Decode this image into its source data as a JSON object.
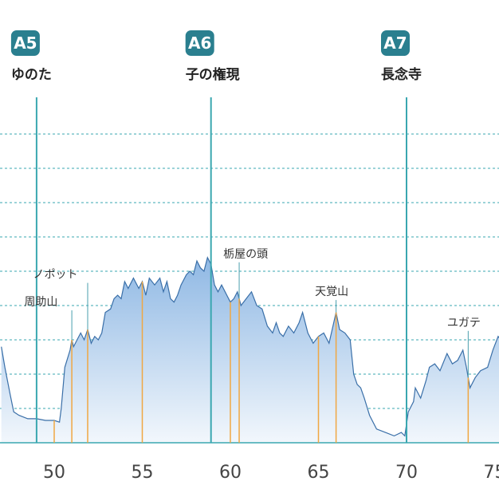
{
  "chart_data": {
    "type": "area",
    "x_ticks": [
      50,
      55,
      60,
      65,
      70,
      75
    ],
    "xlim": [
      47.0,
      75.5
    ],
    "ylim": [
      0,
      10
    ],
    "grid": true,
    "checkpoints": [
      {
        "code": "A5",
        "name": "ゆのた",
        "x": 49.0
      },
      {
        "code": "A6",
        "name": "子の権現",
        "x": 58.9
      },
      {
        "code": "A7",
        "name": "長念寺",
        "x": 70.0
      }
    ],
    "peaks": [
      {
        "name": "周助山",
        "x": 51.0,
        "y": 3.1,
        "label_x": 48.3,
        "label_y": 4.0
      },
      {
        "name": "ノポット",
        "x": 51.9,
        "y": 3.2,
        "label_x": 48.8,
        "label_y": 4.8
      },
      {
        "name": "栃屋の頭",
        "x": 60.5,
        "y": 4.8,
        "label_x": 59.6,
        "label_y": 5.4
      },
      {
        "name": "天覚山",
        "x": 66.0,
        "y": 4.2,
        "label_x": 64.8,
        "label_y": 4.3
      },
      {
        "name": "ユガテ",
        "x": 73.5,
        "y": 2.7,
        "label_x": 72.3,
        "label_y": 3.4
      }
    ],
    "valley_markers": [
      50.0,
      55.0,
      60.0,
      65.0,
      75.5
    ],
    "profile": [
      [
        47.0,
        2.8
      ],
      [
        47.2,
        2.2
      ],
      [
        47.5,
        1.4
      ],
      [
        47.7,
        0.9
      ],
      [
        48.0,
        0.8
      ],
      [
        48.5,
        0.7
      ],
      [
        49.0,
        0.7
      ],
      [
        49.5,
        0.65
      ],
      [
        50.0,
        0.65
      ],
      [
        50.3,
        0.6
      ],
      [
        50.4,
        1.0
      ],
      [
        50.6,
        2.2
      ],
      [
        50.9,
        2.7
      ],
      [
        51.0,
        3.0
      ],
      [
        51.1,
        2.8
      ],
      [
        51.3,
        3.0
      ],
      [
        51.5,
        3.2
      ],
      [
        51.7,
        3.0
      ],
      [
        51.9,
        3.3
      ],
      [
        52.1,
        2.9
      ],
      [
        52.3,
        3.1
      ],
      [
        52.5,
        3.0
      ],
      [
        52.7,
        3.2
      ],
      [
        52.9,
        3.8
      ],
      [
        53.2,
        3.9
      ],
      [
        53.4,
        4.2
      ],
      [
        53.6,
        4.3
      ],
      [
        53.8,
        4.2
      ],
      [
        54.0,
        4.7
      ],
      [
        54.2,
        4.5
      ],
      [
        54.5,
        4.8
      ],
      [
        54.8,
        4.5
      ],
      [
        55.0,
        4.7
      ],
      [
        55.2,
        4.3
      ],
      [
        55.4,
        4.8
      ],
      [
        55.7,
        4.6
      ],
      [
        56.0,
        4.8
      ],
      [
        56.2,
        4.4
      ],
      [
        56.4,
        4.7
      ],
      [
        56.6,
        4.2
      ],
      [
        56.8,
        4.1
      ],
      [
        57.0,
        4.3
      ],
      [
        57.2,
        4.6
      ],
      [
        57.5,
        4.9
      ],
      [
        57.7,
        5.0
      ],
      [
        57.9,
        4.9
      ],
      [
        58.1,
        5.3
      ],
      [
        58.3,
        5.1
      ],
      [
        58.5,
        5.0
      ],
      [
        58.7,
        5.4
      ],
      [
        58.9,
        5.2
      ],
      [
        59.1,
        4.6
      ],
      [
        59.3,
        4.4
      ],
      [
        59.5,
        4.6
      ],
      [
        59.8,
        4.3
      ],
      [
        60.0,
        4.1
      ],
      [
        60.2,
        4.2
      ],
      [
        60.4,
        4.4
      ],
      [
        60.6,
        4.0
      ],
      [
        60.9,
        4.2
      ],
      [
        61.2,
        4.4
      ],
      [
        61.5,
        4.0
      ],
      [
        61.8,
        3.9
      ],
      [
        62.1,
        3.4
      ],
      [
        62.4,
        3.2
      ],
      [
        62.6,
        3.5
      ],
      [
        62.8,
        3.2
      ],
      [
        63.0,
        3.1
      ],
      [
        63.3,
        3.4
      ],
      [
        63.6,
        3.2
      ],
      [
        63.9,
        3.5
      ],
      [
        64.1,
        3.8
      ],
      [
        64.2,
        3.6
      ],
      [
        64.4,
        3.2
      ],
      [
        64.7,
        2.9
      ],
      [
        65.0,
        3.1
      ],
      [
        65.3,
        3.2
      ],
      [
        65.6,
        2.9
      ],
      [
        66.0,
        3.8
      ],
      [
        66.2,
        3.3
      ],
      [
        66.5,
        3.2
      ],
      [
        66.8,
        3.0
      ],
      [
        67.0,
        2.0
      ],
      [
        67.2,
        1.7
      ],
      [
        67.4,
        1.6
      ],
      [
        67.6,
        1.3
      ],
      [
        67.9,
        0.8
      ],
      [
        68.3,
        0.4
      ],
      [
        68.8,
        0.3
      ],
      [
        69.3,
        0.2
      ],
      [
        69.7,
        0.3
      ],
      [
        69.9,
        0.2
      ],
      [
        70.1,
        0.9
      ],
      [
        70.4,
        1.2
      ],
      [
        70.5,
        1.6
      ],
      [
        70.8,
        1.3
      ],
      [
        71.1,
        1.8
      ],
      [
        71.3,
        2.2
      ],
      [
        71.6,
        2.3
      ],
      [
        71.9,
        2.1
      ],
      [
        72.3,
        2.6
      ],
      [
        72.6,
        2.3
      ],
      [
        72.9,
        2.4
      ],
      [
        73.2,
        2.7
      ],
      [
        73.4,
        2.2
      ],
      [
        73.6,
        1.6
      ],
      [
        73.9,
        1.9
      ],
      [
        74.2,
        2.1
      ],
      [
        74.6,
        2.2
      ],
      [
        74.9,
        2.7
      ],
      [
        75.2,
        3.1
      ],
      [
        75.5,
        2.9
      ]
    ]
  }
}
